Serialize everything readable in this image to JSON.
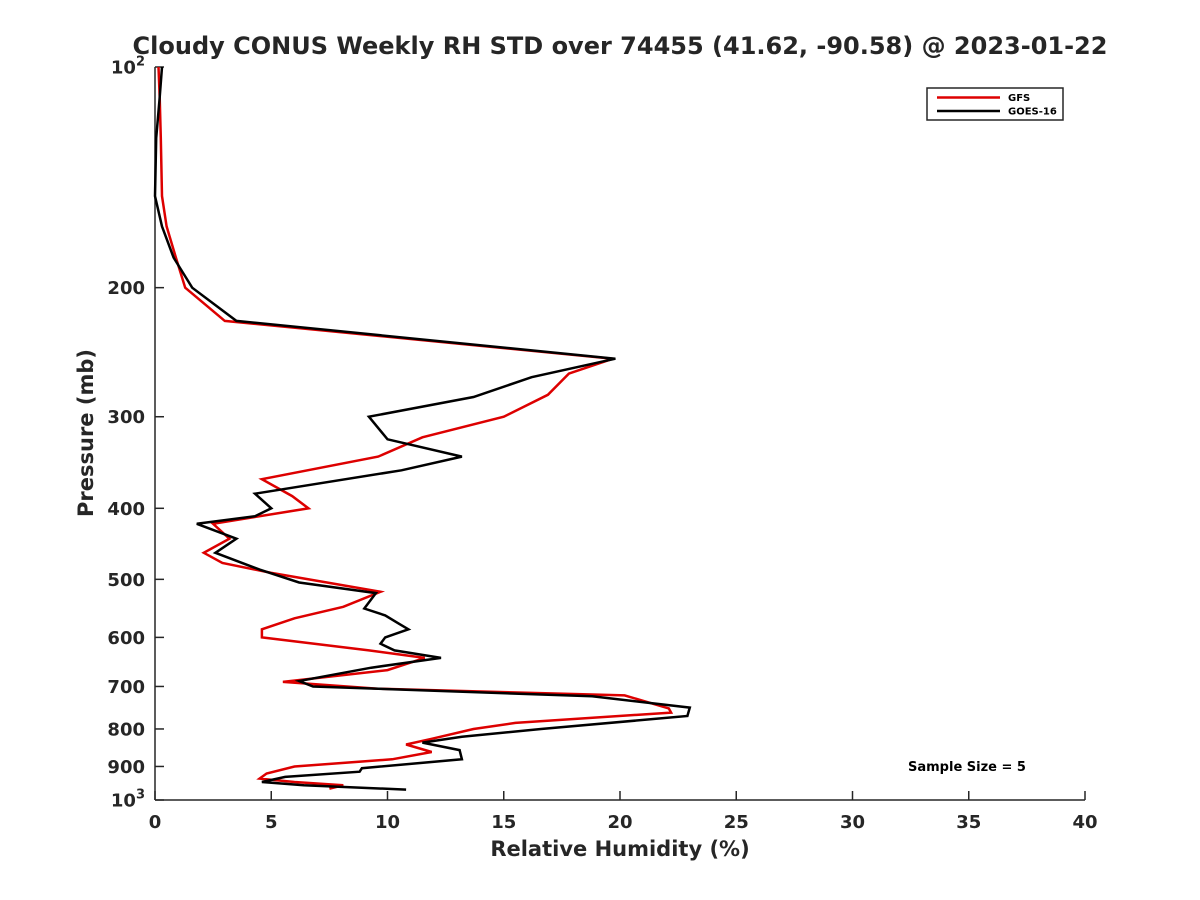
{
  "chart_data": {
    "type": "line",
    "title": "Cloudy CONUS Weekly RH STD over 74455 (41.62, -90.58) @ 2023-01-22",
    "xlabel": "Relative Humidity (%)",
    "ylabel": "Pressure (mb)",
    "xlim": [
      0,
      40
    ],
    "ylim": [
      100,
      1000
    ],
    "yscale": "log",
    "y_reversed": true,
    "grid": false,
    "legend_position": "top-right",
    "xticks": [
      0,
      5,
      10,
      15,
      20,
      25,
      30,
      35,
      40
    ],
    "xtick_labels": [
      "0",
      "5",
      "10",
      "15",
      "20",
      "25",
      "30",
      "35",
      "40"
    ],
    "yticks": [
      {
        "value": 100,
        "base": "10",
        "exp": "2"
      },
      {
        "value": 200,
        "label": "200"
      },
      {
        "value": 300,
        "label": "300"
      },
      {
        "value": 400,
        "label": "400"
      },
      {
        "value": 500,
        "label": "500"
      },
      {
        "value": 600,
        "label": "600"
      },
      {
        "value": 700,
        "label": "700"
      },
      {
        "value": 800,
        "label": "800"
      },
      {
        "value": 900,
        "label": "900"
      },
      {
        "value": 1000,
        "base": "10",
        "exp": "3"
      }
    ],
    "annotation": "Sample Size = 5",
    "series": [
      {
        "name": "GFS",
        "color": "#dd0000",
        "points": [
          [
            0.15,
            100
          ],
          [
            0.2,
            110
          ],
          [
            0.25,
            125
          ],
          [
            0.3,
            150
          ],
          [
            0.5,
            165
          ],
          [
            0.9,
            182
          ],
          [
            1.3,
            200
          ],
          [
            3.0,
            222
          ],
          [
            19.7,
            250
          ],
          [
            17.8,
            262
          ],
          [
            16.9,
            280
          ],
          [
            15.0,
            300
          ],
          [
            11.5,
            320
          ],
          [
            9.6,
            340
          ],
          [
            4.6,
            365
          ],
          [
            5.9,
            385
          ],
          [
            6.6,
            400
          ],
          [
            2.5,
            420
          ],
          [
            3.2,
            440
          ],
          [
            2.1,
            460
          ],
          [
            2.9,
            475
          ],
          [
            5.0,
            490
          ],
          [
            9.7,
            520
          ],
          [
            8.1,
            545
          ],
          [
            6.0,
            565
          ],
          [
            4.6,
            585
          ],
          [
            4.6,
            600
          ],
          [
            9.2,
            625
          ],
          [
            11.6,
            640
          ],
          [
            10.0,
            665
          ],
          [
            5.5,
            690
          ],
          [
            9.6,
            705
          ],
          [
            20.2,
            720
          ],
          [
            22.1,
            750
          ],
          [
            22.2,
            760
          ],
          [
            15.5,
            785
          ],
          [
            13.7,
            800
          ],
          [
            11.9,
            825
          ],
          [
            10.8,
            840
          ],
          [
            11.9,
            860
          ],
          [
            10.2,
            880
          ],
          [
            6.0,
            900
          ],
          [
            4.8,
            920
          ],
          [
            4.5,
            935
          ],
          [
            6.0,
            945
          ],
          [
            8.1,
            955
          ],
          [
            7.5,
            965
          ]
        ]
      },
      {
        "name": "GOES-16",
        "color": "#000000",
        "points": [
          [
            0.3,
            100
          ],
          [
            0.2,
            110
          ],
          [
            0.05,
            125
          ],
          [
            0.0,
            150
          ],
          [
            0.3,
            165
          ],
          [
            0.8,
            182
          ],
          [
            1.6,
            200
          ],
          [
            3.5,
            222
          ],
          [
            19.8,
            250
          ],
          [
            16.2,
            265
          ],
          [
            13.7,
            282
          ],
          [
            9.2,
            300
          ],
          [
            10.0,
            322
          ],
          [
            13.2,
            340
          ],
          [
            10.6,
            355
          ],
          [
            4.3,
            382
          ],
          [
            5.0,
            400
          ],
          [
            4.3,
            410
          ],
          [
            1.8,
            420
          ],
          [
            3.5,
            440
          ],
          [
            2.6,
            460
          ],
          [
            4.5,
            485
          ],
          [
            6.2,
            505
          ],
          [
            9.5,
            522
          ],
          [
            9.0,
            548
          ],
          [
            9.9,
            560
          ],
          [
            10.5,
            575
          ],
          [
            10.9,
            585
          ],
          [
            9.9,
            600
          ],
          [
            9.7,
            612
          ],
          [
            10.3,
            625
          ],
          [
            12.3,
            640
          ],
          [
            9.3,
            660
          ],
          [
            6.2,
            688
          ],
          [
            6.8,
            700
          ],
          [
            18.8,
            722
          ],
          [
            23.0,
            748
          ],
          [
            22.9,
            768
          ],
          [
            16.6,
            800
          ],
          [
            13.2,
            820
          ],
          [
            11.5,
            835
          ],
          [
            13.1,
            855
          ],
          [
            13.2,
            880
          ],
          [
            8.9,
            905
          ],
          [
            8.8,
            915
          ],
          [
            5.6,
            930
          ],
          [
            4.6,
            945
          ],
          [
            6.4,
            955
          ],
          [
            10.8,
            968
          ]
        ]
      }
    ]
  }
}
